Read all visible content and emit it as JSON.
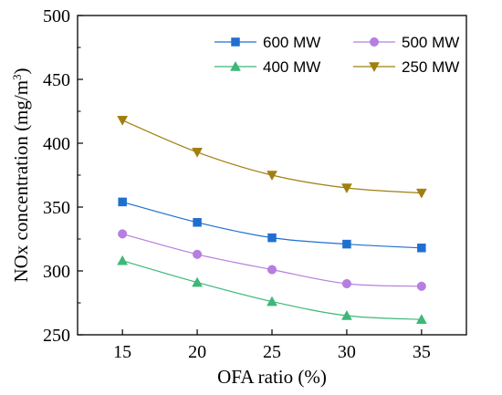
{
  "chart_data": {
    "type": "line",
    "x": [
      15,
      20,
      25,
      30,
      35
    ],
    "xlabel": "OFA ratio (%)",
    "ylabel": "NOx concentration (mg/m",
    "ylabel_sup": "3",
    "ylabel_close": ")",
    "xlim": [
      12,
      38
    ],
    "ylim": [
      250,
      500
    ],
    "xticks": [
      "15",
      "20",
      "25",
      "30",
      "35"
    ],
    "yticks": [
      "250",
      "300",
      "350",
      "400",
      "450",
      "500"
    ],
    "grid": false,
    "legend_position": "top-right",
    "series": [
      {
        "name": "600 MW",
        "values": [
          354,
          338,
          326,
          321,
          318
        ],
        "color": "#1f6fd1",
        "marker": "square"
      },
      {
        "name": "500 MW",
        "values": [
          329,
          313,
          301,
          290,
          288
        ],
        "color": "#b57ee0",
        "marker": "circle"
      },
      {
        "name": "400 MW",
        "values": [
          308,
          291,
          276,
          265,
          262
        ],
        "color": "#3cb878",
        "marker": "triangle-up"
      },
      {
        "name": "250 MW",
        "values": [
          418,
          393,
          375,
          365,
          361
        ],
        "color": "#a07f10",
        "marker": "triangle-down"
      }
    ]
  }
}
